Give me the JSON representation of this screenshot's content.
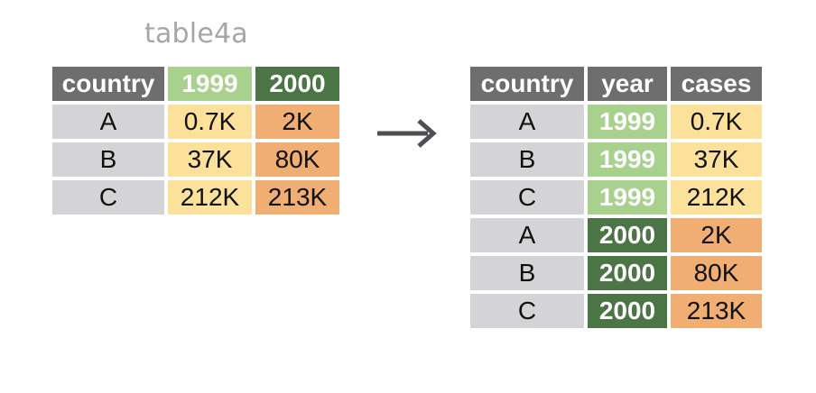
{
  "left_table": {
    "title": "table4a",
    "header": [
      "country",
      "1999",
      "2000"
    ],
    "rows": [
      [
        "A",
        "0.7K",
        "2K"
      ],
      [
        "B",
        "37K",
        "80K"
      ],
      [
        "C",
        "212K",
        "213K"
      ]
    ]
  },
  "right_table": {
    "header": [
      "country",
      "year",
      "cases"
    ],
    "rows": [
      [
        "A",
        "1999",
        "0.7K"
      ],
      [
        "B",
        "1999",
        "37K"
      ],
      [
        "C",
        "1999",
        "212K"
      ],
      [
        "A",
        "2000",
        "2K"
      ],
      [
        "B",
        "2000",
        "80K"
      ],
      [
        "C",
        "2000",
        "213K"
      ]
    ]
  },
  "colors": {
    "header_gray": "#6e6e6e",
    "year_1999": "#a9d18e",
    "year_2000": "#4b7544",
    "key_gray": "#d4d4d6",
    "value_1999": "#fce19a",
    "value_2000": "#f1ae72",
    "arrow": "#4d4f53"
  },
  "icons": {
    "arrow": "right-arrow-icon"
  }
}
